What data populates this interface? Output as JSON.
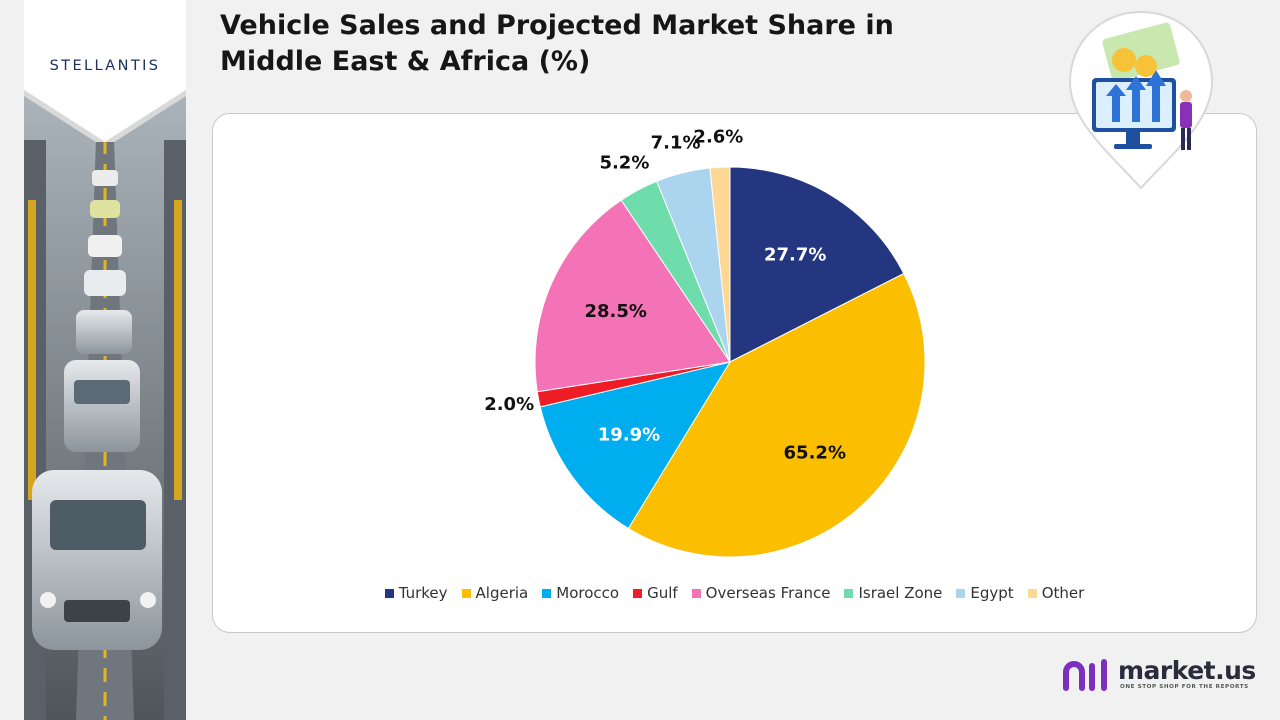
{
  "brand": {
    "logo": "STELLANTIS",
    "site": "market.us",
    "tagline": "ONE STOP SHOP FOR THE REPORTS"
  },
  "header": {
    "title": "Vehicle Sales and Projected Market Share in Middle East & Africa (%)"
  },
  "icons": {
    "badge": "growth-chart-money-icon",
    "brand_mark": "market-us-logo-icon"
  },
  "chart_data": {
    "type": "pie",
    "title": "Vehicle Sales and Projected Market Share in Middle East & Africa (%)",
    "legend_position": "bottom",
    "slices": [
      {
        "name": "Turkey",
        "value": 27.7,
        "label": "27.7%",
        "color": "#243680"
      },
      {
        "name": "Algeria",
        "value": 65.2,
        "label": "65.2%",
        "color": "#fbbe00"
      },
      {
        "name": "Morocco",
        "value": 19.9,
        "label": "19.9%",
        "color": "#00aeef"
      },
      {
        "name": "Gulf",
        "value": 2.0,
        "label": "2.0%",
        "color": "#ee1c24"
      },
      {
        "name": "Overseas France",
        "value": 28.5,
        "label": "28.5%",
        "color": "#f472b6"
      },
      {
        "name": "Israel Zone",
        "value": 5.2,
        "label": "5.2%",
        "color": "#6edcab"
      },
      {
        "name": "Egypt",
        "value": 7.1,
        "label": "7.1%",
        "color": "#abd4ee"
      },
      {
        "name": "Other",
        "value": 2.6,
        "label": "2.6%",
        "color": "#fdd894"
      }
    ]
  }
}
